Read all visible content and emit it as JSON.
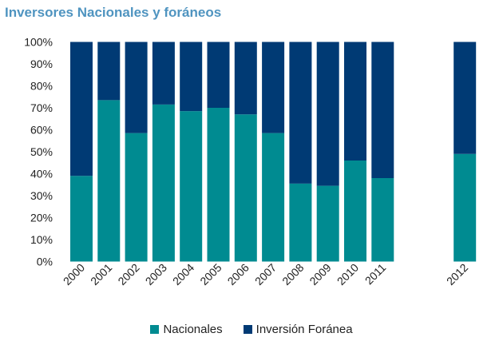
{
  "chart_data": {
    "type": "bar",
    "stacked": true,
    "title": "Inversores Nacionales y foráneos",
    "categories": [
      "2000",
      "2001",
      "2002",
      "2003",
      "2004",
      "2005",
      "2006",
      "2007",
      "2008",
      "2009",
      "2010",
      "2011",
      "2012"
    ],
    "series": [
      {
        "name": "Nacionales",
        "color": "#008b91",
        "values": [
          39,
          73.5,
          58.5,
          71.5,
          68.5,
          70,
          67,
          58.5,
          35.5,
          34.5,
          46,
          38,
          49
        ]
      },
      {
        "name": "Inversión Foránea",
        "color": "#003a74",
        "values": [
          61,
          26.5,
          41.5,
          28.5,
          31.5,
          30,
          33,
          41.5,
          64.5,
          65.5,
          54,
          62,
          51
        ]
      }
    ],
    "ylim": [
      0,
      100
    ],
    "yticks": [
      "0%",
      "10%",
      "20%",
      "30%",
      "40%",
      "50%",
      "60%",
      "70%",
      "80%",
      "90%",
      "100%"
    ],
    "xlabel": "",
    "ylabel": "",
    "grid": false,
    "legend": "bottom"
  }
}
